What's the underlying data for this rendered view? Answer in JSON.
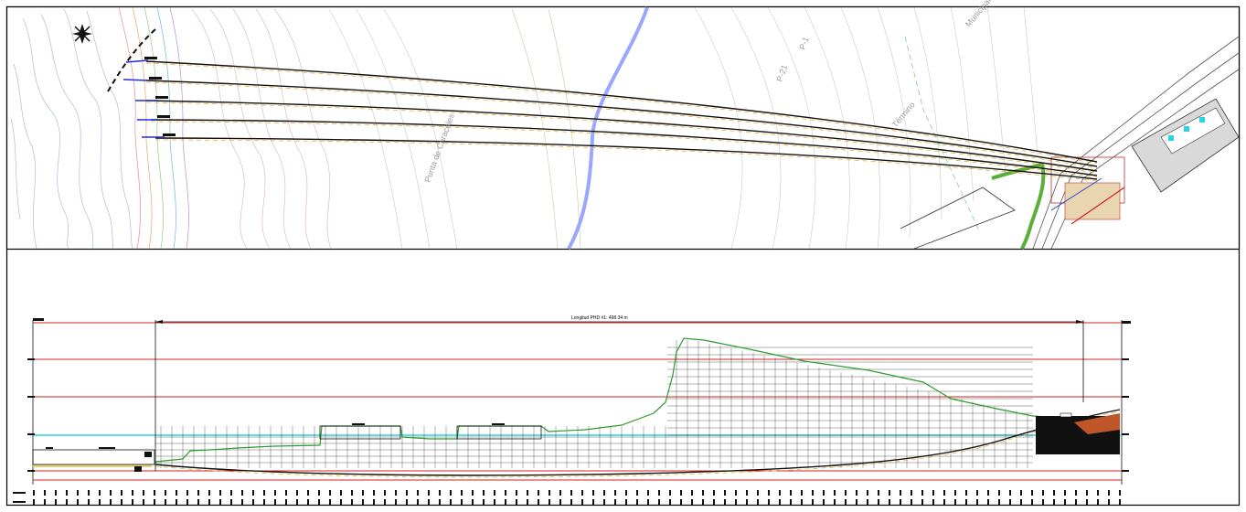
{
  "drawing": {
    "profile_length_label": "Longitud PHD #1: 498.34 m",
    "north_symbol": "north-arrow-icon",
    "colors": {
      "border": "#000000",
      "drill_paths": "#1a1a1a",
      "drill_dash": "#e8b23a",
      "elevation_lines": "#d42020",
      "water_line": "#2bd3e0",
      "terrain_profile": "#2e9b2e",
      "river": "#9aa7ff",
      "bathymetry_contours": "#8fa3c8",
      "onshore_contours": "#c9a3b8"
    },
    "plan_view": {
      "drill_count": 5,
      "labels": [
        "Punta de Caracoles",
        "P-1",
        "P-21",
        "Término",
        "Municipal"
      ]
    },
    "profile_view": {
      "elevation_gridlines": 5
    }
  }
}
